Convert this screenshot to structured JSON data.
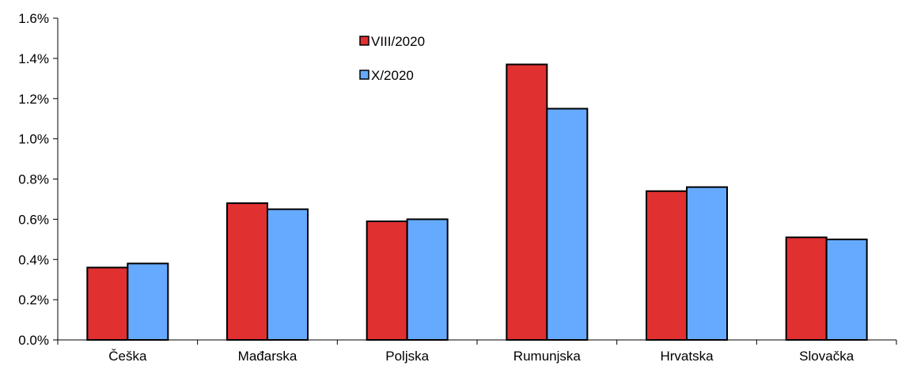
{
  "chart_data": {
    "type": "bar",
    "categories": [
      "Češka",
      "Mađarska",
      "Poljska",
      "Rumunjska",
      "Hrvatska",
      "Slovačka"
    ],
    "series": [
      {
        "name": "VIII/2020",
        "color": "#e03030",
        "values": [
          0.36,
          0.68,
          0.59,
          1.37,
          0.74,
          0.51
        ]
      },
      {
        "name": "X/2020",
        "color": "#66aaff",
        "values": [
          0.38,
          0.65,
          0.6,
          1.15,
          0.76,
          0.5
        ]
      }
    ],
    "ylim": [
      0,
      1.6
    ],
    "yticks": [
      "0.0%",
      "0.2%",
      "0.4%",
      "0.6%",
      "0.8%",
      "1.0%",
      "1.2%",
      "1.4%",
      "1.6%"
    ],
    "ytick_values": [
      0,
      0.2,
      0.4,
      0.6,
      0.8,
      1.0,
      1.2,
      1.4,
      1.6
    ],
    "grid": false,
    "legend_position": "top-center"
  }
}
